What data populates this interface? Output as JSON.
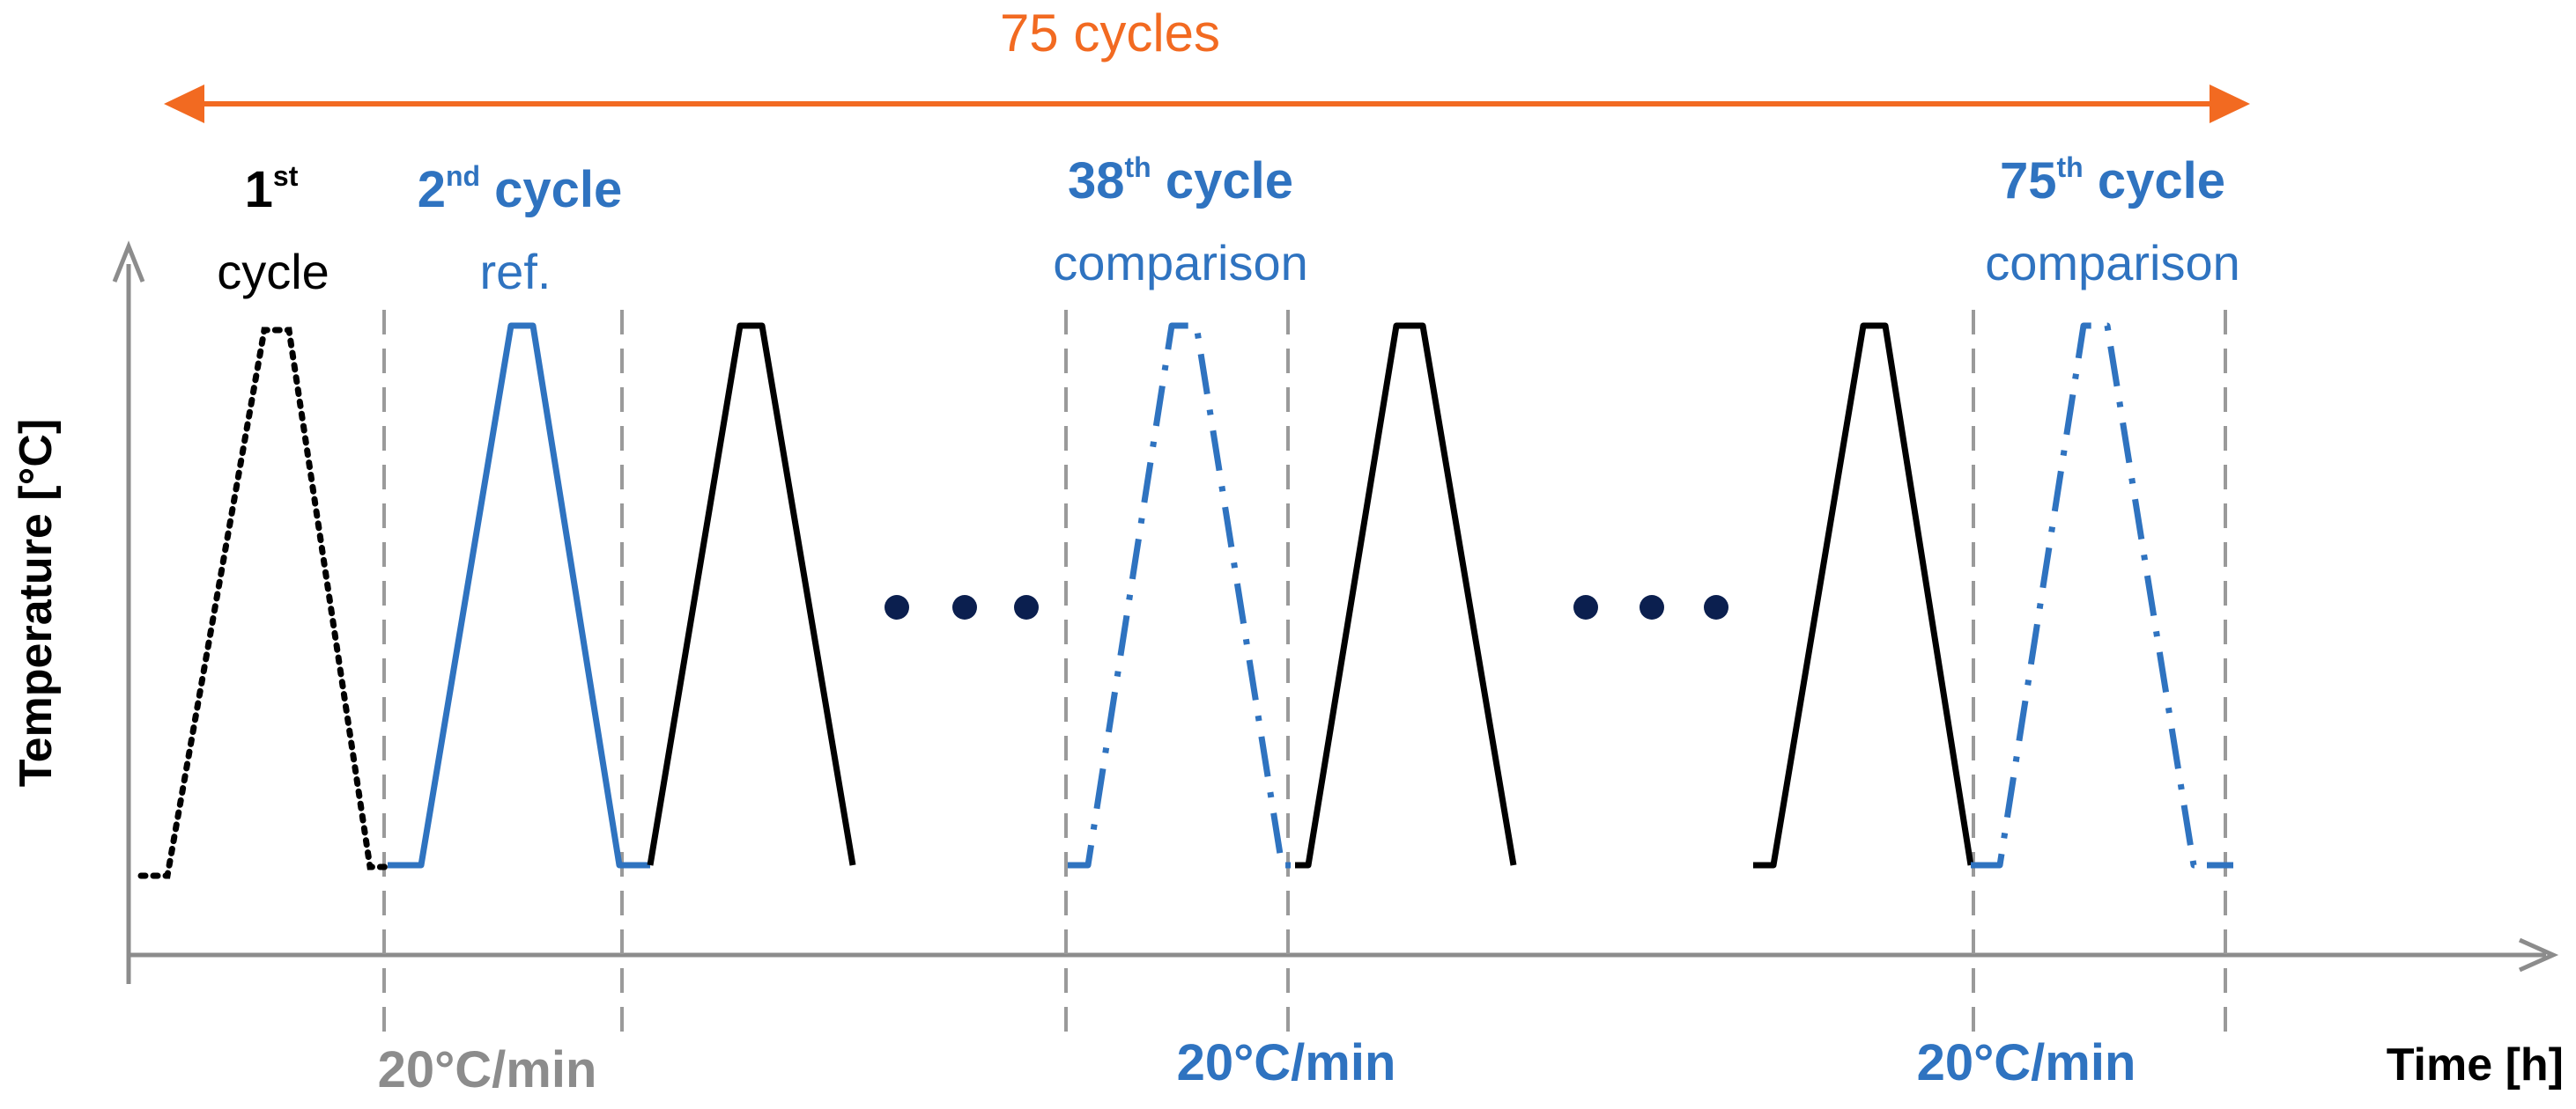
{
  "colors": {
    "orange": "#F26A21",
    "blue": "#2F73C0",
    "black": "#000000",
    "gray": "#8C8C8C",
    "dots": "#0B1F4F",
    "axis": "#8C8C8C"
  },
  "labels": {
    "span": "75 cycles",
    "cycle1_num": "1",
    "cycle1_sup": "st",
    "cycle1_word": "cycle",
    "cycle2_num": "2",
    "cycle2_sup": "nd",
    "cycle2_word": " cycle",
    "cycle2_sub": "ref.",
    "cycle38_num": "38",
    "cycle38_sup": "th",
    "cycle38_word": " cycle",
    "cycle38_sub": "comparison",
    "cycle75_num": "75",
    "cycle75_sup": "th",
    "cycle75_word": " cycle",
    "cycle75_sub": "comparison",
    "rate_1": "20°C/min",
    "rate_2": "20°C/min",
    "rate_3": "20°C/min",
    "y_axis": "Temperature [°C]",
    "x_axis": "Time [h]"
  },
  "icons": {
    "ellipsis_1": "ellipsis-dots",
    "ellipsis_2": "ellipsis-dots",
    "span_arrow": "double-headed-arrow"
  },
  "cycles": [
    {
      "name": "cycle-1",
      "style": "dotted",
      "color": "black"
    },
    {
      "name": "cycle-2",
      "style": "solid",
      "color": "blue"
    },
    {
      "name": "cycle-3",
      "style": "solid",
      "color": "black"
    },
    {
      "name": "cycle-38",
      "style": "dash-dot",
      "color": "blue"
    },
    {
      "name": "cycle-39",
      "style": "solid",
      "color": "black"
    },
    {
      "name": "cycle-74",
      "style": "solid",
      "color": "black"
    },
    {
      "name": "cycle-75",
      "style": "dash-dot",
      "color": "blue"
    }
  ]
}
